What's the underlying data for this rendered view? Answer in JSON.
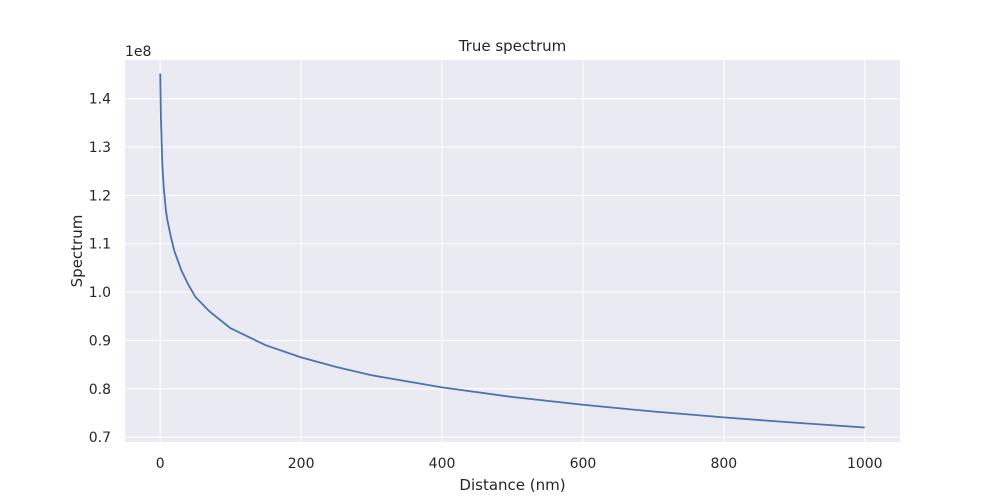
{
  "chart_data": {
    "type": "line",
    "title": "True spectrum",
    "xlabel": "Distance (nm)",
    "ylabel": "Spectrum",
    "y_offset_label": "1e8",
    "xlim": [
      -50,
      1050
    ],
    "ylim": [
      0.69,
      1.48
    ],
    "x_ticks": [
      0,
      200,
      400,
      600,
      800,
      1000
    ],
    "x_tick_labels": [
      "0",
      "200",
      "400",
      "600",
      "800",
      "1000"
    ],
    "y_ticks": [
      0.7,
      0.8,
      0.9,
      1.0,
      1.1,
      1.2,
      1.3,
      1.4
    ],
    "y_tick_labels": [
      "0.7",
      "0.8",
      "0.9",
      "1.0",
      "1.1",
      "1.2",
      "1.3",
      "1.4"
    ],
    "grid": true,
    "colors": {
      "background": "#eaeaf2",
      "grid": "#ffffff",
      "line": "#4c72b0"
    },
    "series": [
      {
        "x": [
          0,
          1,
          2,
          3,
          5,
          8,
          10,
          15,
          20,
          30,
          40,
          50,
          70,
          100,
          150,
          200,
          250,
          300,
          400,
          500,
          600,
          700,
          800,
          900,
          1000
        ],
        "values": [
          1.452,
          1.36,
          1.31,
          1.265,
          1.215,
          1.17,
          1.15,
          1.115,
          1.085,
          1.045,
          1.015,
          0.99,
          0.96,
          0.925,
          0.89,
          0.865,
          0.845,
          0.828,
          0.803,
          0.783,
          0.767,
          0.753,
          0.741,
          0.73,
          0.72
        ]
      }
    ]
  }
}
